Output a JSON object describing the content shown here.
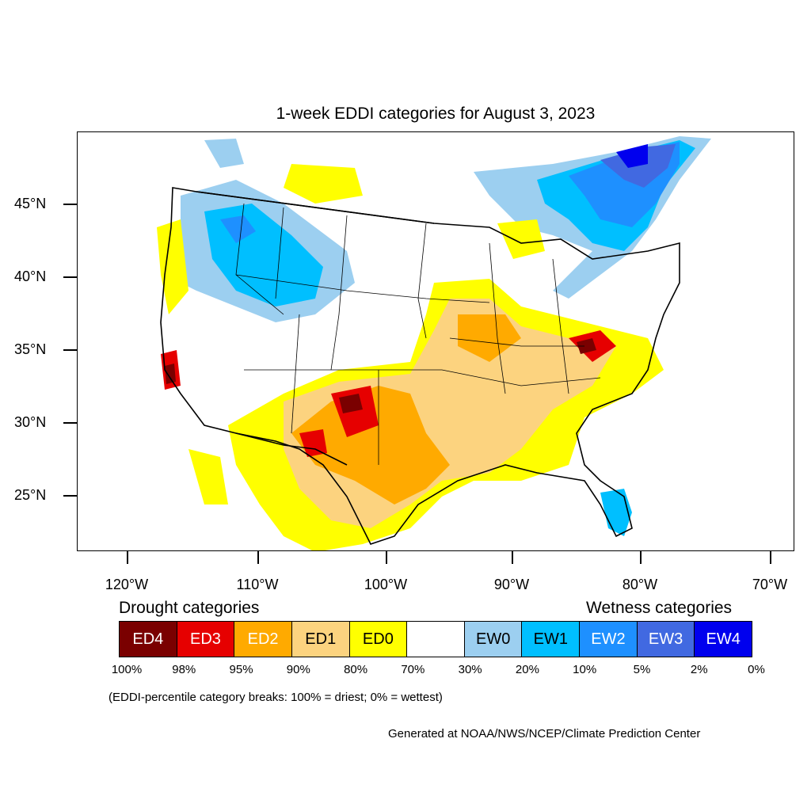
{
  "title": "1-week EDDI categories for August 3, 2023",
  "lat_labels": [
    "45°N",
    "40°N",
    "35°N",
    "30°N",
    "25°N"
  ],
  "lon_labels": [
    "120°W",
    "110°W",
    "100°W",
    "90°W",
    "80°W",
    "70°W"
  ],
  "legend": {
    "drought_title": "Drought categories",
    "wetness_title": "Wetness categories",
    "categories": [
      {
        "label": "ED4",
        "color": "#7a0000",
        "text_color": "#ffffff"
      },
      {
        "label": "ED3",
        "color": "#e60000",
        "text_color": "#ffffff"
      },
      {
        "label": "ED2",
        "color": "#ffaa00",
        "text_color": "#ffffff"
      },
      {
        "label": "ED1",
        "color": "#fcd37f",
        "text_color": "#000000"
      },
      {
        "label": "ED0",
        "color": "#ffff00",
        "text_color": "#000000"
      },
      {
        "label": "",
        "color": "#ffffff",
        "text_color": "#000000"
      },
      {
        "label": "EW0",
        "color": "#9ccff0",
        "text_color": "#000000"
      },
      {
        "label": "EW1",
        "color": "#00bfff",
        "text_color": "#000000"
      },
      {
        "label": "EW2",
        "color": "#1e90ff",
        "text_color": "#ffffff"
      },
      {
        "label": "EW3",
        "color": "#4169e1",
        "text_color": "#ffffff"
      },
      {
        "label": "EW4",
        "color": "#0000ee",
        "text_color": "#ffffff"
      }
    ],
    "breaks": [
      "100%",
      "98%",
      "95%",
      "90%",
      "80%",
      "70%",
      "30%",
      "20%",
      "10%",
      "5%",
      "2%",
      "0%"
    ]
  },
  "note": "(EDDI-percentile category breaks: 100% = driest; 0% = wettest)",
  "credit": "Generated at NOAA/NWS/NCEP/Climate Prediction Center"
}
